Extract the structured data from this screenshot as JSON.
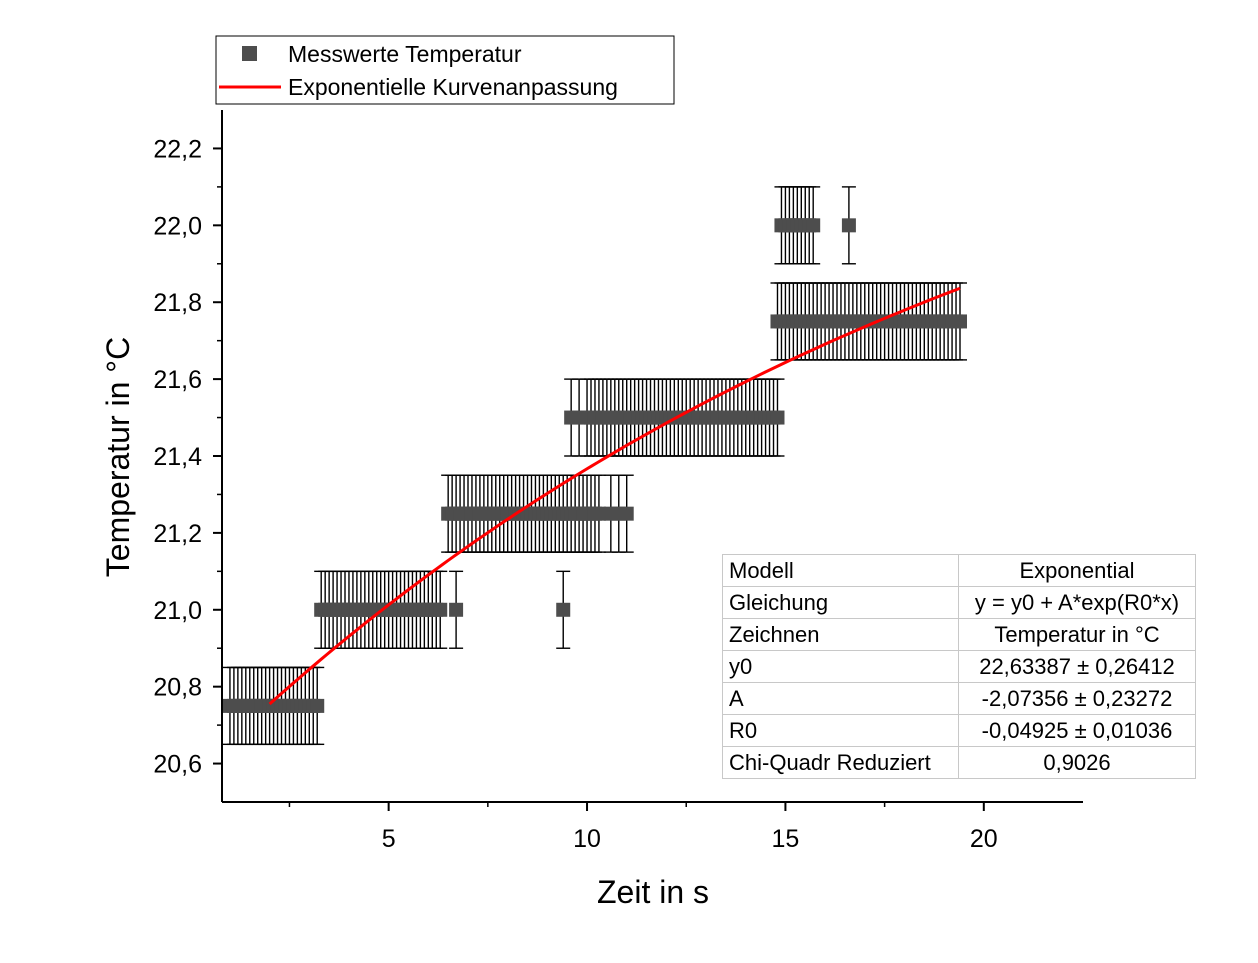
{
  "chart_data": {
    "type": "scatter",
    "xlabel": "Zeit in s",
    "ylabel": "Temperatur in °C",
    "xlim": [
      0.8,
      22.5
    ],
    "ylim": [
      20.5,
      22.3
    ],
    "x_ticks": [
      5,
      10,
      15,
      20
    ],
    "x_tick_labels": [
      "5",
      "10",
      "15",
      "20"
    ],
    "y_ticks": [
      20.6,
      20.8,
      21.0,
      21.2,
      21.4,
      21.6,
      21.8,
      22.0,
      22.2
    ],
    "y_tick_labels": [
      "20,6",
      "20,8",
      "21,0",
      "21,2",
      "21,4",
      "21,6",
      "21,8",
      "22,0",
      "22,2"
    ],
    "legend_position": "top-left",
    "series": [
      {
        "name": "Messwerte Temperatur",
        "kind": "points_with_errorbars",
        "color": "#4d4d4d",
        "error": 0.1,
        "groups": [
          {
            "y": 20.75,
            "x_from": 1.0,
            "x_to": 3.2,
            "step": 0.1
          },
          {
            "y": 21.0,
            "x_from": 3.3,
            "x_to": 6.3,
            "step": 0.1
          },
          {
            "y": 21.0,
            "x_values": [
              6.7
            ]
          },
          {
            "y": 21.25,
            "x_from": 6.5,
            "x_to": 10.3,
            "step": 0.1
          },
          {
            "y": 21.25,
            "x_values": [
              10.6,
              10.8,
              11.0
            ]
          },
          {
            "y": 21.0,
            "x_values": [
              9.4
            ]
          },
          {
            "y": 21.5,
            "x_values": [
              9.6,
              9.8
            ]
          },
          {
            "y": 21.5,
            "x_from": 10.0,
            "x_to": 14.8,
            "step": 0.1
          },
          {
            "y": 21.75,
            "x_from": 14.8,
            "x_to": 19.4,
            "step": 0.1
          },
          {
            "y": 22.0,
            "x_from": 14.9,
            "x_to": 15.7,
            "step": 0.1
          },
          {
            "y": 22.0,
            "x_values": [
              16.6
            ]
          }
        ]
      },
      {
        "name": "Exponentielle Kurvenanpassung",
        "kind": "fit_line",
        "color": "#ff0000",
        "model": {
          "y0": 22.63387,
          "A": -2.07356,
          "R0": -0.04925
        },
        "x_range": [
          2.0,
          19.4
        ]
      }
    ],
    "fit_table": {
      "rows": [
        {
          "key": "Modell",
          "value": "Exponential"
        },
        {
          "key": "Gleichung",
          "value": "y = y0 + A*exp(R0*x)"
        },
        {
          "key": "Zeichnen",
          "value": "Temperatur in °C"
        },
        {
          "key": "y0",
          "value": "22,63387 ± 0,26412"
        },
        {
          "key": "A",
          "value": "-2,07356 ± 0,23272"
        },
        {
          "key": "R0",
          "value": "-0,04925 ± 0,01036"
        },
        {
          "key": "Chi-Quadr Reduziert",
          "value": "0,9026"
        }
      ]
    }
  }
}
